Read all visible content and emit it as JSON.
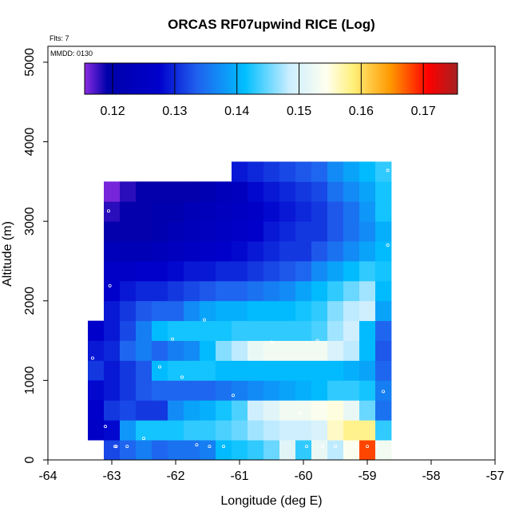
{
  "chart_data": {
    "type": "heatmap",
    "title": "ORCAS RF07upwind RICE (Log)",
    "xlabel": "Longitude (deg E)",
    "ylabel": "Altitude (m)",
    "xlim": [
      -64,
      -57
    ],
    "ylim": [
      0,
      5200
    ],
    "x_ticks": [
      -64,
      -63,
      -62,
      -61,
      -60,
      -59,
      -58,
      -57
    ],
    "y_ticks": [
      0,
      1000,
      2000,
      3000,
      4000,
      5000
    ],
    "x_tick_labels": [
      "-64",
      "-63",
      "-62",
      "-61",
      "-60",
      "-59",
      "-58",
      "-57"
    ],
    "y_tick_labels": [
      "0",
      "1000",
      "2000",
      "3000",
      "4000",
      "5000"
    ],
    "flights_note": "Flts: 7",
    "date_note": "MMDD: 0130",
    "colorbar": {
      "min": 0.1155,
      "max": 0.1755,
      "ticks": [
        0.12,
        0.13,
        0.14,
        0.15,
        0.16,
        0.17
      ],
      "tick_labels": [
        "0.12",
        "0.13",
        "0.14",
        "0.15",
        "0.16",
        "0.17"
      ],
      "stops": [
        [
          0.0,
          "#8a2be2"
        ],
        [
          0.06,
          "#0000aa"
        ],
        [
          0.2,
          "#0000cc"
        ],
        [
          0.3,
          "#2060ee"
        ],
        [
          0.43,
          "#00bfff"
        ],
        [
          0.55,
          "#cceeff"
        ],
        [
          0.65,
          "#ffffee"
        ],
        [
          0.72,
          "#fff07a"
        ],
        [
          0.82,
          "#ff9900"
        ],
        [
          0.92,
          "#ff0000"
        ],
        [
          1.0,
          "#a52020"
        ]
      ]
    },
    "cell_lon_width": 0.25,
    "cell_alt_height": 250,
    "cells": [
      [
        -63.25,
        1000,
        0.131
      ],
      [
        -63.25,
        1250,
        0.129
      ],
      [
        -63.25,
        1500,
        0.127
      ],
      [
        -63.25,
        750,
        0.128
      ],
      [
        -63.25,
        500,
        0.127
      ],
      [
        -63.25,
        250,
        0.126
      ],
      [
        -63.0,
        0,
        0.132
      ],
      [
        -63.0,
        250,
        0.128
      ],
      [
        -63.0,
        500,
        0.131
      ],
      [
        -63.0,
        750,
        0.129
      ],
      [
        -63.0,
        1000,
        0.129
      ],
      [
        -63.0,
        1250,
        0.13
      ],
      [
        -63.0,
        1500,
        0.129
      ],
      [
        -63.0,
        1750,
        0.129
      ],
      [
        -63.0,
        2000,
        0.127
      ],
      [
        -63.0,
        2250,
        0.126
      ],
      [
        -63.0,
        2500,
        0.123
      ],
      [
        -63.0,
        2750,
        0.119
      ],
      [
        -63.0,
        3000,
        0.118
      ],
      [
        -63.0,
        3250,
        0.116
      ],
      [
        -62.75,
        0,
        0.134
      ],
      [
        -62.75,
        250,
        0.138
      ],
      [
        -62.75,
        500,
        0.132
      ],
      [
        -62.75,
        750,
        0.131
      ],
      [
        -62.75,
        1000,
        0.131
      ],
      [
        -62.75,
        1250,
        0.134
      ],
      [
        -62.75,
        1500,
        0.132
      ],
      [
        -62.75,
        1750,
        0.131
      ],
      [
        -62.75,
        2000,
        0.129
      ],
      [
        -62.75,
        2250,
        0.126
      ],
      [
        -62.75,
        2500,
        0.122
      ],
      [
        -62.75,
        2750,
        0.119
      ],
      [
        -62.75,
        3000,
        0.119
      ],
      [
        -62.75,
        3250,
        0.118
      ],
      [
        -62.5,
        0,
        0.136
      ],
      [
        -62.5,
        250,
        0.142
      ],
      [
        -62.5,
        500,
        0.131
      ],
      [
        -62.5,
        750,
        0.133
      ],
      [
        -62.5,
        1000,
        0.133
      ],
      [
        -62.5,
        1250,
        0.136
      ],
      [
        -62.5,
        1500,
        0.136
      ],
      [
        -62.5,
        1750,
        0.133
      ],
      [
        -62.5,
        2000,
        0.13
      ],
      [
        -62.5,
        2250,
        0.127
      ],
      [
        -62.5,
        2500,
        0.122
      ],
      [
        -62.5,
        2750,
        0.119
      ],
      [
        -62.5,
        3000,
        0.119
      ],
      [
        -62.5,
        3250,
        0.119
      ],
      [
        -62.25,
        0,
        0.134
      ],
      [
        -62.25,
        250,
        0.142
      ],
      [
        -62.25,
        500,
        0.131
      ],
      [
        -62.25,
        750,
        0.134
      ],
      [
        -62.25,
        1000,
        0.141
      ],
      [
        -62.25,
        1250,
        0.134
      ],
      [
        -62.25,
        1500,
        0.141
      ],
      [
        -62.25,
        1750,
        0.134
      ],
      [
        -62.25,
        2000,
        0.13
      ],
      [
        -62.25,
        2250,
        0.127
      ],
      [
        -62.25,
        2500,
        0.123
      ],
      [
        -62.25,
        2750,
        0.12
      ],
      [
        -62.25,
        3000,
        0.12
      ],
      [
        -62.25,
        3250,
        0.119
      ],
      [
        -62.0,
        0,
        0.135
      ],
      [
        -62.0,
        250,
        0.142
      ],
      [
        -62.0,
        500,
        0.137
      ],
      [
        -62.0,
        750,
        0.134
      ],
      [
        -62.0,
        1000,
        0.142
      ],
      [
        -62.0,
        1250,
        0.136
      ],
      [
        -62.0,
        1500,
        0.142
      ],
      [
        -62.0,
        1750,
        0.134
      ],
      [
        -62.0,
        2000,
        0.131
      ],
      [
        -62.0,
        2250,
        0.128
      ],
      [
        -62.0,
        2500,
        0.124
      ],
      [
        -62.0,
        2750,
        0.122
      ],
      [
        -62.0,
        3000,
        0.12
      ],
      [
        -62.0,
        3250,
        0.119
      ],
      [
        -61.75,
        0,
        0.135
      ],
      [
        -61.75,
        250,
        0.143
      ],
      [
        -61.75,
        500,
        0.139
      ],
      [
        -61.75,
        750,
        0.134
      ],
      [
        -61.75,
        1000,
        0.142
      ],
      [
        -61.75,
        1250,
        0.137
      ],
      [
        -61.75,
        1500,
        0.142
      ],
      [
        -61.75,
        1750,
        0.137
      ],
      [
        -61.75,
        2000,
        0.132
      ],
      [
        -61.75,
        2250,
        0.129
      ],
      [
        -61.75,
        2500,
        0.125
      ],
      [
        -61.75,
        2750,
        0.123
      ],
      [
        -61.75,
        3000,
        0.122
      ],
      [
        -61.75,
        3250,
        0.119
      ],
      [
        -61.5,
        0,
        0.136
      ],
      [
        -61.5,
        250,
        0.143
      ],
      [
        -61.5,
        500,
        0.14
      ],
      [
        -61.5,
        750,
        0.134
      ],
      [
        -61.5,
        1000,
        0.142
      ],
      [
        -61.5,
        1250,
        0.141
      ],
      [
        -61.5,
        1500,
        0.142
      ],
      [
        -61.5,
        1750,
        0.139
      ],
      [
        -61.5,
        2000,
        0.133
      ],
      [
        -61.5,
        2250,
        0.129
      ],
      [
        -61.5,
        2500,
        0.126
      ],
      [
        -61.5,
        2750,
        0.124
      ],
      [
        -61.5,
        3000,
        0.123
      ],
      [
        -61.5,
        3250,
        0.121
      ],
      [
        -61.25,
        0,
        0.141
      ],
      [
        -61.25,
        250,
        0.144
      ],
      [
        -61.25,
        500,
        0.142
      ],
      [
        -61.25,
        750,
        0.135
      ],
      [
        -61.25,
        1000,
        0.141
      ],
      [
        -61.25,
        1250,
        0.146
      ],
      [
        -61.25,
        1500,
        0.142
      ],
      [
        -61.25,
        1750,
        0.14
      ],
      [
        -61.25,
        2000,
        0.134
      ],
      [
        -61.25,
        2250,
        0.13
      ],
      [
        -61.25,
        2500,
        0.127
      ],
      [
        -61.25,
        2750,
        0.125
      ],
      [
        -61.25,
        3000,
        0.124
      ],
      [
        -61.25,
        3250,
        0.123
      ],
      [
        -61.0,
        0,
        0.142
      ],
      [
        -61.0,
        250,
        0.145
      ],
      [
        -61.0,
        500,
        0.144
      ],
      [
        -61.0,
        750,
        0.136
      ],
      [
        -61.0,
        1000,
        0.141
      ],
      [
        -61.0,
        1250,
        0.148
      ],
      [
        -61.0,
        1500,
        0.143
      ],
      [
        -61.0,
        1750,
        0.14
      ],
      [
        -61.0,
        2000,
        0.134
      ],
      [
        -61.0,
        2250,
        0.13
      ],
      [
        -61.0,
        2500,
        0.128
      ],
      [
        -61.0,
        2750,
        0.126
      ],
      [
        -61.0,
        3000,
        0.125
      ],
      [
        -61.0,
        3250,
        0.124
      ],
      [
        -61.0,
        3500,
        0.129
      ],
      [
        -60.75,
        0,
        0.143
      ],
      [
        -60.75,
        250,
        0.147
      ],
      [
        -60.75,
        500,
        0.149
      ],
      [
        -60.75,
        750,
        0.137
      ],
      [
        -60.75,
        1000,
        0.141
      ],
      [
        -60.75,
        1250,
        0.152
      ],
      [
        -60.75,
        1500,
        0.143
      ],
      [
        -60.75,
        1750,
        0.141
      ],
      [
        -60.75,
        2000,
        0.135
      ],
      [
        -60.75,
        2250,
        0.131
      ],
      [
        -60.75,
        2500,
        0.129
      ],
      [
        -60.75,
        2750,
        0.127
      ],
      [
        -60.75,
        3000,
        0.126
      ],
      [
        -60.75,
        3250,
        0.128
      ],
      [
        -60.75,
        3500,
        0.13
      ],
      [
        -60.5,
        0,
        0.145
      ],
      [
        -60.5,
        250,
        0.148
      ],
      [
        -60.5,
        500,
        0.151
      ],
      [
        -60.5,
        750,
        0.138
      ],
      [
        -60.5,
        1000,
        0.141
      ],
      [
        -60.5,
        1250,
        0.153
      ],
      [
        -60.5,
        1500,
        0.143
      ],
      [
        -60.5,
        1750,
        0.141
      ],
      [
        -60.5,
        2000,
        0.136
      ],
      [
        -60.5,
        2250,
        0.132
      ],
      [
        -60.5,
        2500,
        0.13
      ],
      [
        -60.5,
        2750,
        0.129
      ],
      [
        -60.5,
        3000,
        0.128
      ],
      [
        -60.5,
        3250,
        0.129
      ],
      [
        -60.5,
        3500,
        0.131
      ],
      [
        -60.25,
        0,
        0.151
      ],
      [
        -60.25,
        250,
        0.149
      ],
      [
        -60.25,
        500,
        0.153
      ],
      [
        -60.25,
        750,
        0.139
      ],
      [
        -60.25,
        1000,
        0.141
      ],
      [
        -60.25,
        1250,
        0.153
      ],
      [
        -60.25,
        1500,
        0.143
      ],
      [
        -60.25,
        1750,
        0.141
      ],
      [
        -60.25,
        2000,
        0.137
      ],
      [
        -60.25,
        2250,
        0.133
      ],
      [
        -60.25,
        2500,
        0.131
      ],
      [
        -60.25,
        2750,
        0.13
      ],
      [
        -60.25,
        3000,
        0.129
      ],
      [
        -60.25,
        3250,
        0.13
      ],
      [
        -60.25,
        3500,
        0.132
      ],
      [
        -60.0,
        0,
        0.143
      ],
      [
        -60.0,
        250,
        0.149
      ],
      [
        -60.0,
        500,
        0.153
      ],
      [
        -60.0,
        750,
        0.14
      ],
      [
        -60.0,
        1000,
        0.141
      ],
      [
        -60.0,
        1250,
        0.153
      ],
      [
        -60.0,
        1500,
        0.143
      ],
      [
        -60.0,
        1750,
        0.142
      ],
      [
        -60.0,
        2000,
        0.139
      ],
      [
        -60.0,
        2250,
        0.134
      ],
      [
        -60.0,
        2500,
        0.131
      ],
      [
        -60.0,
        2750,
        0.131
      ],
      [
        -60.0,
        3000,
        0.13
      ],
      [
        -60.0,
        3250,
        0.131
      ],
      [
        -60.0,
        3500,
        0.133
      ],
      [
        -59.75,
        0,
        0.152
      ],
      [
        -59.75,
        250,
        0.15
      ],
      [
        -59.75,
        500,
        0.154
      ],
      [
        -59.75,
        750,
        0.141
      ],
      [
        -59.75,
        1000,
        0.141
      ],
      [
        -59.75,
        1250,
        0.153
      ],
      [
        -59.75,
        1500,
        0.144
      ],
      [
        -59.75,
        1750,
        0.143
      ],
      [
        -59.75,
        2000,
        0.141
      ],
      [
        -59.75,
        2250,
        0.137
      ],
      [
        -59.75,
        2500,
        0.133
      ],
      [
        -59.75,
        2750,
        0.131
      ],
      [
        -59.75,
        3000,
        0.131
      ],
      [
        -59.75,
        3250,
        0.132
      ],
      [
        -59.75,
        3500,
        0.134
      ],
      [
        -59.5,
        0,
        0.148
      ],
      [
        -59.5,
        250,
        0.156
      ],
      [
        -59.5,
        500,
        0.155
      ],
      [
        -59.5,
        750,
        0.143
      ],
      [
        -59.5,
        1000,
        0.141
      ],
      [
        -59.5,
        1250,
        0.15
      ],
      [
        -59.5,
        1500,
        0.147
      ],
      [
        -59.5,
        1750,
        0.146
      ],
      [
        -59.5,
        2000,
        0.143
      ],
      [
        -59.5,
        2250,
        0.139
      ],
      [
        -59.5,
        2500,
        0.135
      ],
      [
        -59.5,
        2750,
        0.133
      ],
      [
        -59.5,
        3000,
        0.133
      ],
      [
        -59.5,
        3250,
        0.135
      ],
      [
        -59.5,
        3500,
        0.137
      ],
      [
        -59.25,
        0,
        0.154
      ],
      [
        -59.25,
        250,
        0.158
      ],
      [
        -59.25,
        500,
        0.152
      ],
      [
        -59.25,
        750,
        0.143
      ],
      [
        -59.25,
        1000,
        0.14
      ],
      [
        -59.25,
        1250,
        0.148
      ],
      [
        -59.25,
        1500,
        0.149
      ],
      [
        -59.25,
        1750,
        0.148
      ],
      [
        -59.25,
        2000,
        0.145
      ],
      [
        -59.25,
        2250,
        0.141
      ],
      [
        -59.25,
        2500,
        0.137
      ],
      [
        -59.25,
        2750,
        0.135
      ],
      [
        -59.25,
        3000,
        0.135
      ],
      [
        -59.25,
        3250,
        0.137
      ],
      [
        -59.25,
        3500,
        0.139
      ],
      [
        -59.0,
        0,
        0.168
      ],
      [
        -59.0,
        250,
        0.158
      ],
      [
        -59.0,
        500,
        0.145
      ],
      [
        -59.0,
        750,
        0.142
      ],
      [
        -59.0,
        1000,
        0.139
      ],
      [
        -59.0,
        1250,
        0.141
      ],
      [
        -59.0,
        1500,
        0.141
      ],
      [
        -59.0,
        1750,
        0.149
      ],
      [
        -59.0,
        2000,
        0.147
      ],
      [
        -59.0,
        2250,
        0.143
      ],
      [
        -59.0,
        2500,
        0.139
      ],
      [
        -59.0,
        2750,
        0.137
      ],
      [
        -59.0,
        3000,
        0.138
      ],
      [
        -59.0,
        3250,
        0.139
      ],
      [
        -59.0,
        3500,
        0.141
      ],
      [
        -58.75,
        0,
        0.153
      ],
      [
        -58.75,
        250,
        0.143
      ],
      [
        -58.75,
        500,
        0.135
      ],
      [
        -58.75,
        750,
        0.136
      ],
      [
        -58.75,
        1000,
        0.134
      ],
      [
        -58.75,
        1250,
        0.133
      ],
      [
        -58.75,
        1500,
        0.134
      ],
      [
        -58.75,
        1750,
        0.139
      ],
      [
        -58.75,
        2000,
        0.141
      ],
      [
        -58.75,
        2250,
        0.142
      ],
      [
        -58.75,
        2500,
        0.141
      ],
      [
        -58.75,
        2750,
        0.14
      ],
      [
        -58.75,
        3000,
        0.142
      ],
      [
        -58.75,
        3250,
        0.142
      ],
      [
        -58.75,
        3500,
        0.143
      ]
    ],
    "points": [
      [
        -63.05,
        3130
      ],
      [
        -63.03,
        2190
      ],
      [
        -62.95,
        170
      ],
      [
        -62.93,
        170
      ],
      [
        -62.76,
        170
      ],
      [
        -62.5,
        270
      ],
      [
        -62.25,
        1170
      ],
      [
        -62.05,
        1520
      ],
      [
        -61.9,
        1040
      ],
      [
        -61.67,
        190
      ],
      [
        -61.47,
        170
      ],
      [
        -61.25,
        170
      ],
      [
        -61.1,
        810
      ],
      [
        -60.5,
        1480
      ],
      [
        -60.05,
        590
      ],
      [
        -59.95,
        170
      ],
      [
        -59.78,
        1500
      ],
      [
        -59.7,
        170
      ],
      [
        -59.5,
        170
      ],
      [
        -59.2,
        170
      ],
      [
        -59.0,
        170
      ],
      [
        -58.85,
        170
      ],
      [
        -58.75,
        860
      ],
      [
        -58.68,
        2700
      ],
      [
        -58.68,
        3640
      ],
      [
        -63.3,
        1280
      ],
      [
        -63.1,
        420
      ],
      [
        -61.55,
        1760
      ]
    ]
  }
}
